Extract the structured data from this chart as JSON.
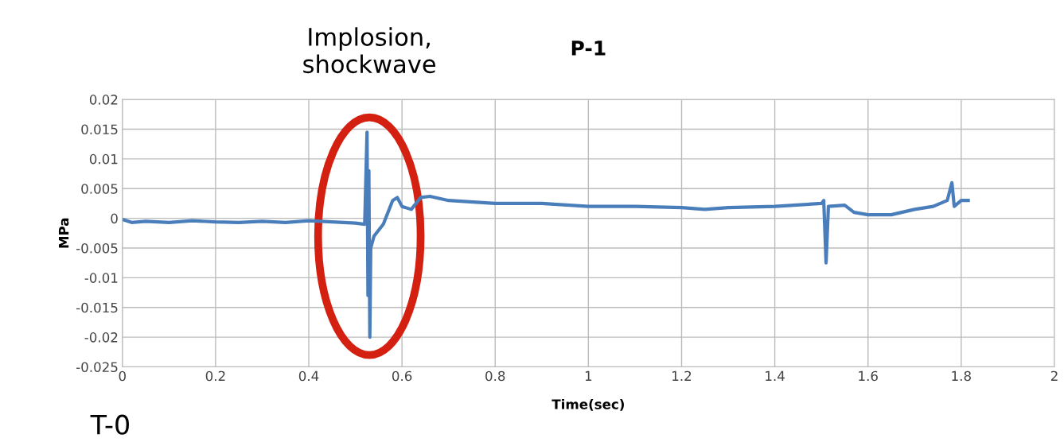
{
  "chart_data": {
    "type": "line",
    "title": "P-1",
    "xlabel": "Time(sec)",
    "ylabel": "MPa",
    "annotations": [
      {
        "text": "Implosion,\nshockwave",
        "x": 0.53,
        "y": 0.0145
      },
      "T-0"
    ],
    "series": [
      {
        "color": "#4a7ebb",
        "x": [
          0,
          0.02,
          0.05,
          0.1,
          0.15,
          0.2,
          0.25,
          0.3,
          0.35,
          0.4,
          0.45,
          0.5,
          0.52,
          0.525,
          0.527,
          0.529,
          0.531,
          0.533,
          0.54,
          0.55,
          0.56,
          0.57,
          0.58,
          0.59,
          0.6,
          0.62,
          0.64,
          0.66,
          0.7,
          0.8,
          0.9,
          1.0,
          1.1,
          1.2,
          1.25,
          1.3,
          1.4,
          1.5,
          1.505,
          1.51,
          1.515,
          1.55,
          1.57,
          1.6,
          1.65,
          1.7,
          1.74,
          1.77,
          1.78,
          1.785,
          1.8,
          1.815
        ],
        "values": [
          -0.0002,
          -0.0007,
          -0.0005,
          -0.0007,
          -0.0004,
          -0.0006,
          -0.0007,
          -0.0005,
          -0.0007,
          -0.0004,
          -0.0006,
          -0.0008,
          -0.001,
          0.0145,
          -0.013,
          0.008,
          -0.02,
          -0.005,
          -0.003,
          -0.002,
          -0.001,
          0.001,
          0.003,
          0.0035,
          0.002,
          0.0015,
          0.0035,
          0.0037,
          0.003,
          0.0025,
          0.0025,
          0.002,
          0.002,
          0.0018,
          0.0015,
          0.0018,
          0.002,
          0.0025,
          0.003,
          -0.0075,
          0.002,
          0.0022,
          0.001,
          0.0006,
          0.0006,
          0.0015,
          0.002,
          0.003,
          0.006,
          0.002,
          0.003,
          0.003
        ]
      }
    ],
    "xlim": [
      0,
      2
    ],
    "xticks": [
      0,
      0.2,
      0.4,
      0.6,
      0.8,
      1,
      1.2,
      1.4,
      1.6,
      1.8,
      2
    ],
    "ylim": [
      -0.025,
      0.02
    ],
    "yticks": [
      -0.025,
      -0.02,
      -0.015,
      -0.01,
      -0.005,
      0,
      0.005,
      0.01,
      0.015,
      0.02
    ],
    "grid": true,
    "legend": false
  }
}
